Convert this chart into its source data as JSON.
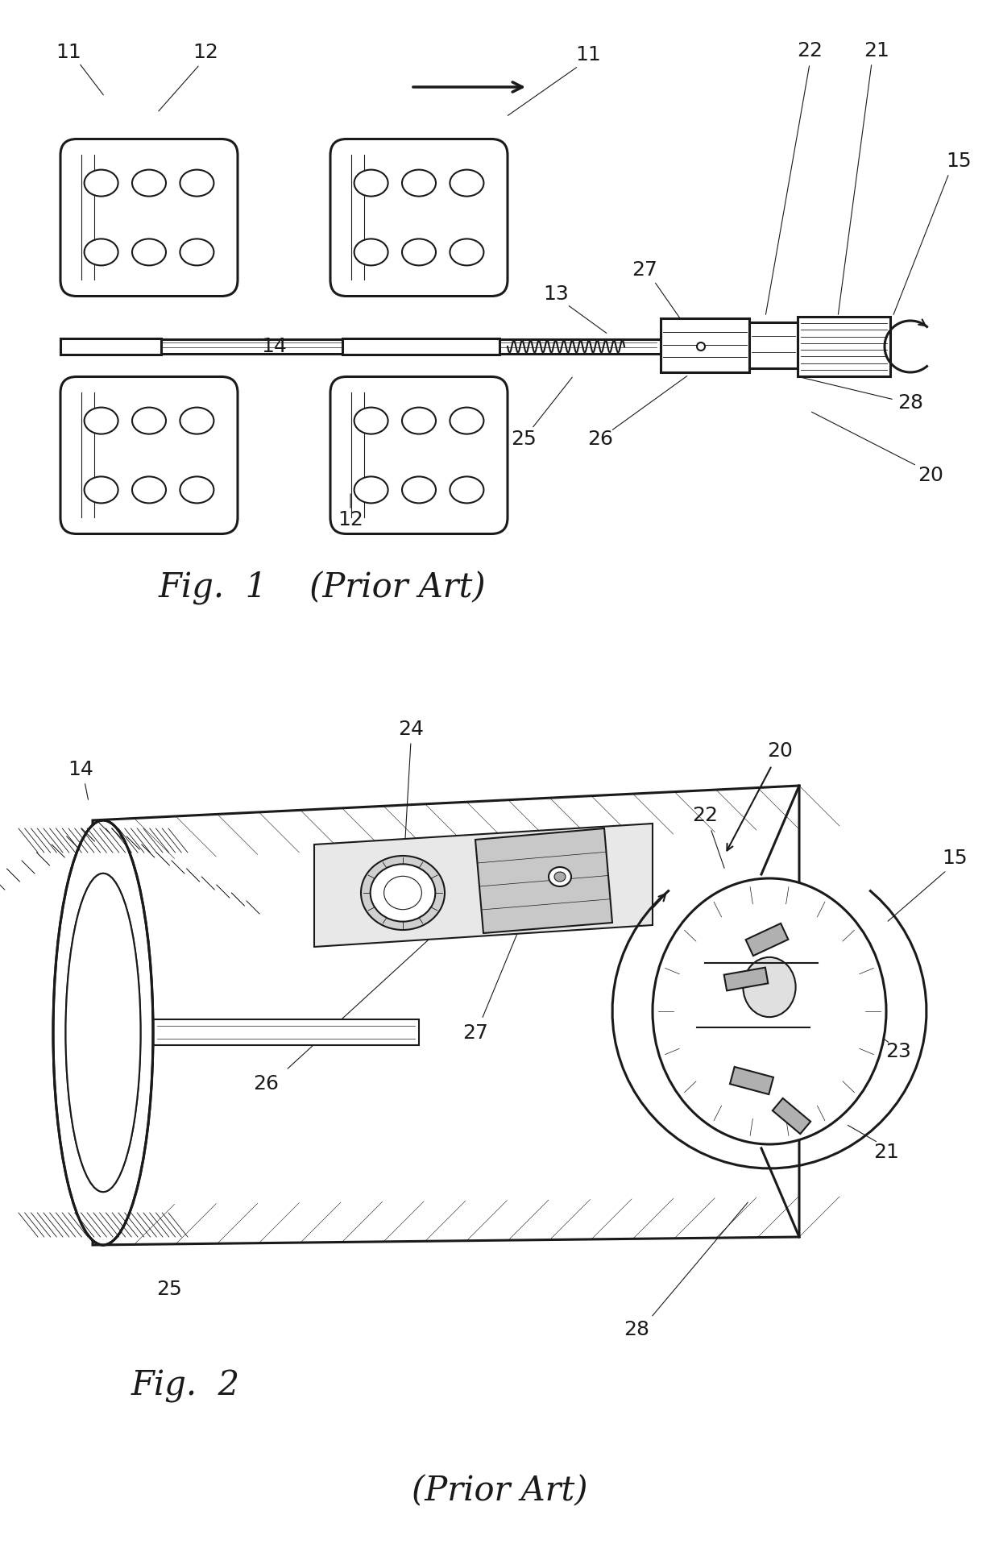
{
  "fig_width": 12.4,
  "fig_height": 19.26,
  "bg_color": "#ffffff",
  "line_color": "#1a1a1a",
  "fig1_caption": "Fig.  1    (Prior Art)",
  "fig2_caption": "Fig.  2",
  "fig2_sub": "(Prior Art)",
  "fs_label": 18,
  "fs_caption": 30
}
